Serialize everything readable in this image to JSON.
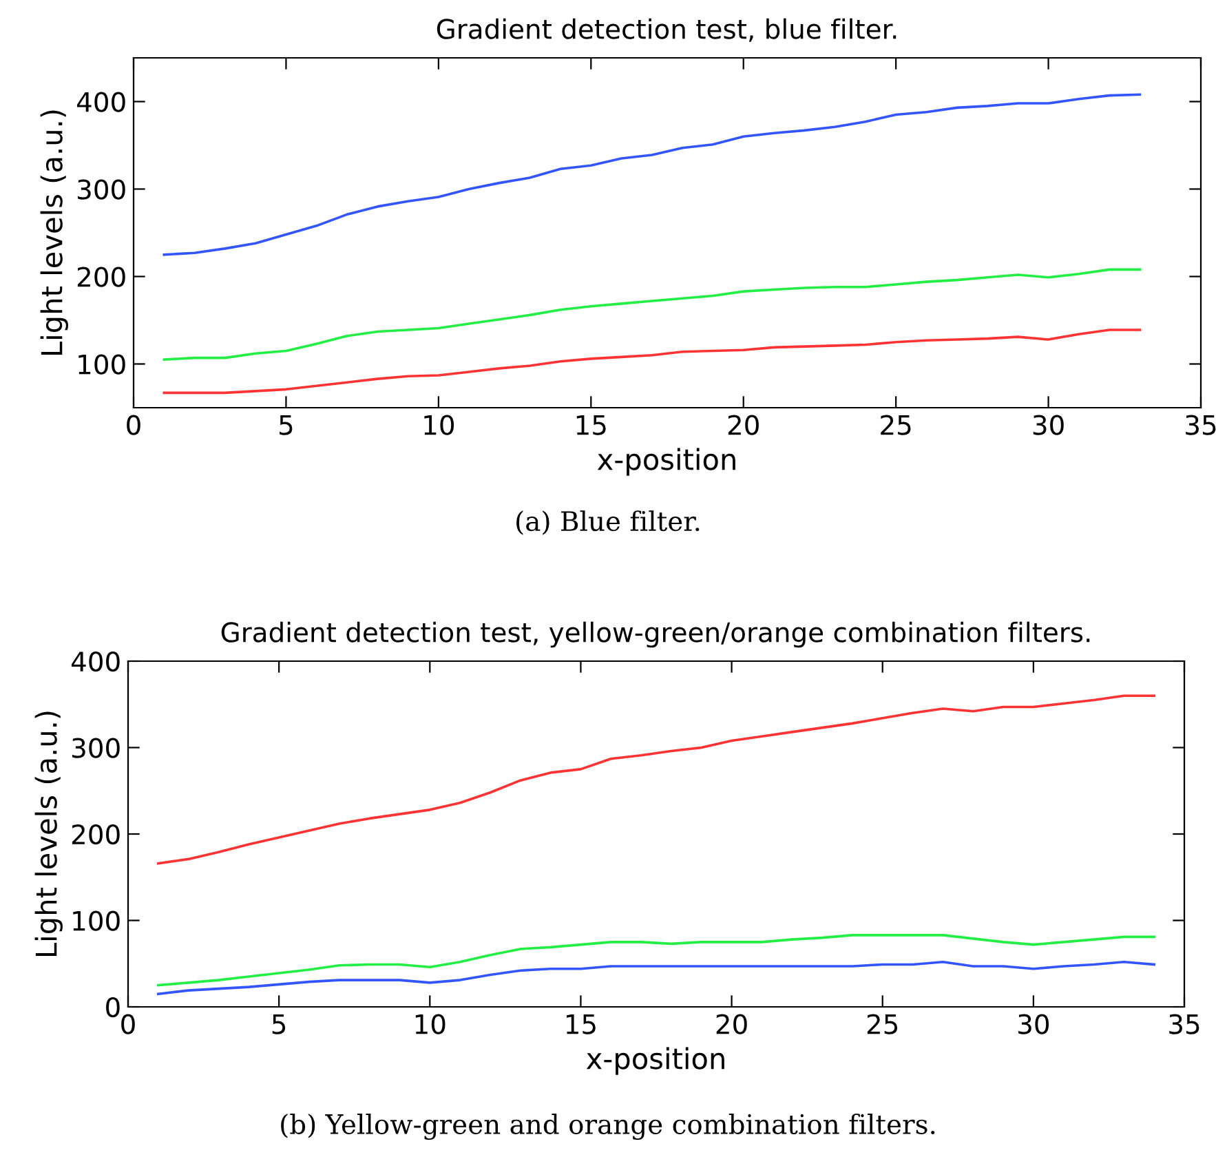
{
  "chart_data": [
    {
      "type": "line",
      "title": "Gradient detection test, blue filter.",
      "xlabel": "x-position",
      "ylabel": "Light levels (a.u.)",
      "annotations": [
        "(a) Blue filter."
      ],
      "x": [
        1,
        2,
        3,
        4,
        5,
        6,
        7,
        8,
        9,
        10,
        11,
        12,
        13,
        14,
        15,
        16,
        17,
        18,
        19,
        20,
        21,
        22,
        23,
        24,
        25,
        26,
        27,
        28,
        29,
        30,
        31,
        32,
        33
      ],
      "xlim": [
        0,
        35
      ],
      "xticks": [
        0,
        5,
        10,
        15,
        20,
        25,
        30,
        35
      ],
      "ylim": [
        50,
        450
      ],
      "yticks": [
        100,
        200,
        300,
        400
      ],
      "grid": false,
      "legend": false,
      "series": [
        {
          "color": "#3355ff",
          "values": [
            225,
            227,
            232,
            238,
            248,
            258,
            271,
            280,
            286,
            291,
            300,
            307,
            313,
            323,
            327,
            335,
            339,
            347,
            351,
            360,
            364,
            367,
            371,
            377,
            385,
            388,
            393,
            395,
            398,
            398,
            403,
            407,
            408
          ]
        },
        {
          "color": "#22ee44",
          "values": [
            105,
            107,
            107,
            112,
            115,
            123,
            132,
            137,
            139,
            141,
            146,
            151,
            156,
            162,
            166,
            169,
            172,
            175,
            178,
            183,
            185,
            187,
            188,
            188,
            191,
            194,
            196,
            199,
            202,
            199,
            203,
            208,
            208
          ]
        },
        {
          "color": "#ff3333",
          "values": [
            67,
            67,
            67,
            69,
            71,
            75,
            79,
            83,
            86,
            87,
            91,
            95,
            98,
            103,
            106,
            108,
            110,
            114,
            115,
            116,
            119,
            120,
            121,
            122,
            125,
            127,
            128,
            129,
            131,
            128,
            134,
            139,
            139
          ]
        }
      ]
    },
    {
      "type": "line",
      "title": "Gradient detection test, yellow-green/orange combination filters.",
      "xlabel": "x-position",
      "ylabel": "Light levels (a.u.)",
      "annotations": [
        "(b) Yellow-green and orange combination filters."
      ],
      "x": [
        1,
        2,
        3,
        4,
        5,
        6,
        7,
        8,
        9,
        10,
        11,
        12,
        13,
        14,
        15,
        16,
        17,
        18,
        19,
        20,
        21,
        22,
        23,
        24,
        25,
        26,
        27,
        28,
        29,
        30,
        31,
        32,
        33,
        34
      ],
      "xlim": [
        0,
        35
      ],
      "xticks": [
        0,
        5,
        10,
        15,
        20,
        25,
        30,
        35
      ],
      "ylim": [
        0,
        400
      ],
      "yticks": [
        0,
        100,
        200,
        300,
        400
      ],
      "grid": false,
      "legend": false,
      "series": [
        {
          "color": "#ff3333",
          "values": [
            166,
            171,
            179,
            188,
            196,
            204,
            212,
            218,
            223,
            228,
            236,
            248,
            262,
            271,
            275,
            287,
            291,
            296,
            300,
            308,
            313,
            318,
            323,
            328,
            334,
            340,
            345,
            342,
            347,
            347,
            351,
            355,
            360,
            360
          ]
        },
        {
          "color": "#22ee44",
          "values": [
            25,
            28,
            31,
            35,
            39,
            43,
            48,
            49,
            49,
            46,
            52,
            60,
            67,
            69,
            72,
            75,
            75,
            73,
            75,
            75,
            75,
            78,
            80,
            83,
            83,
            83,
            83,
            79,
            75,
            72,
            75,
            78,
            81,
            81
          ]
        },
        {
          "color": "#3355ff",
          "values": [
            15,
            19,
            21,
            23,
            26,
            29,
            31,
            31,
            31,
            28,
            31,
            37,
            42,
            44,
            44,
            47,
            47,
            47,
            47,
            47,
            47,
            47,
            47,
            47,
            49,
            49,
            52,
            47,
            47,
            44,
            47,
            49,
            52,
            49
          ]
        }
      ]
    }
  ]
}
